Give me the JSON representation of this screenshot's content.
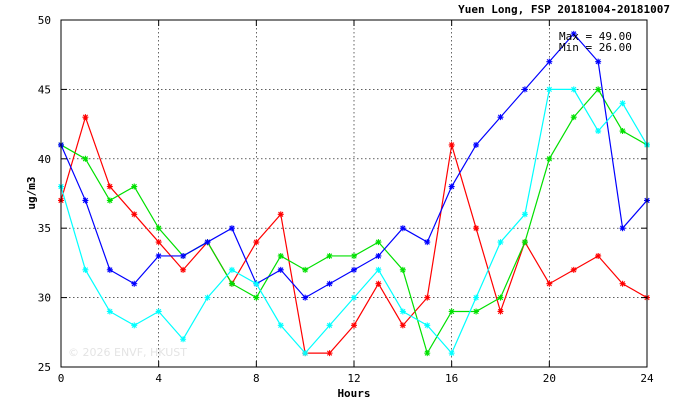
{
  "chart_data": {
    "type": "line",
    "title": "Yuen Long, FSP 20181004-20181007",
    "xlabel": "Hours",
    "ylabel": "ug/m3",
    "xlim": [
      0,
      24
    ],
    "ylim": [
      25,
      50
    ],
    "xticks": [
      0,
      4,
      8,
      12,
      16,
      20,
      24
    ],
    "yticks": [
      25,
      30,
      35,
      40,
      45,
      50
    ],
    "grid": true,
    "max_label": "Max = 49.00",
    "min_label": "Min = 26.00",
    "watermark": "© 2026 ENVF, HKUST",
    "x": [
      0,
      1,
      2,
      3,
      4,
      5,
      6,
      7,
      8,
      9,
      10,
      11,
      12,
      13,
      14,
      15,
      16,
      17,
      18,
      19,
      20,
      21,
      22,
      23,
      24
    ],
    "series": [
      {
        "color": "#ff0000",
        "values": [
          37,
          43,
          38,
          36,
          34,
          32,
          34,
          31,
          34,
          36,
          26,
          26,
          28,
          31,
          28,
          30,
          41,
          35,
          29,
          34,
          31,
          32,
          33,
          31,
          30
        ]
      },
      {
        "color": "#00e000",
        "values": [
          41,
          40,
          37,
          38,
          35,
          33,
          34,
          31,
          30,
          33,
          32,
          33,
          33,
          34,
          32,
          26,
          29,
          29,
          30,
          34,
          40,
          43,
          45,
          42,
          41
        ]
      },
      {
        "color": "#0000ff",
        "values": [
          41,
          37,
          32,
          31,
          33,
          33,
          34,
          35,
          31,
          32,
          30,
          31,
          32,
          33,
          35,
          34,
          38,
          41,
          43,
          45,
          47,
          49,
          47,
          35,
          37
        ]
      },
      {
        "color": "#00ffff",
        "values": [
          38,
          32,
          29,
          28,
          29,
          27,
          30,
          32,
          31,
          28,
          26,
          28,
          30,
          32,
          29,
          28,
          26,
          30,
          34,
          36,
          45,
          45,
          42,
          44,
          41
        ]
      }
    ]
  }
}
